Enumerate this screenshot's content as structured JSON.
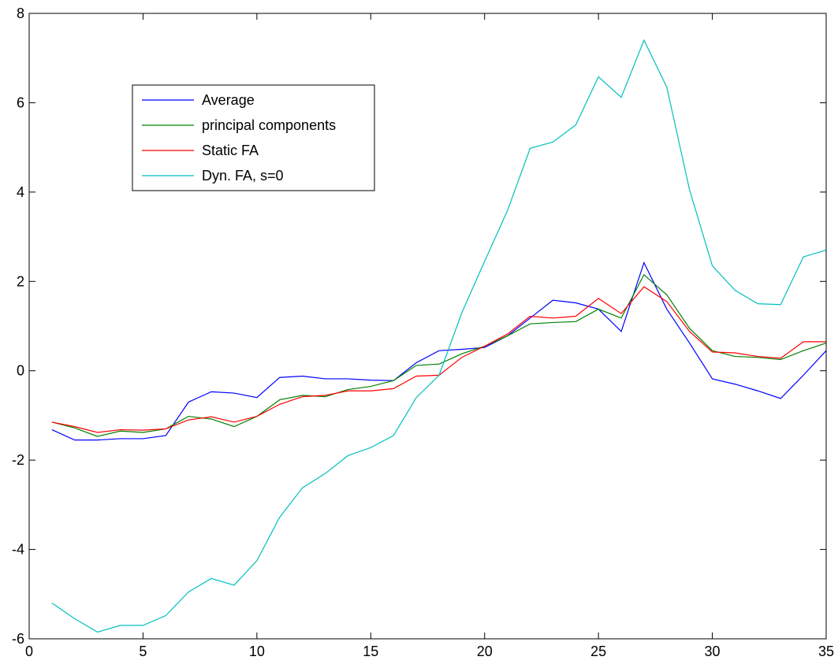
{
  "chart_data": {
    "type": "line",
    "title": "",
    "xlabel": "",
    "ylabel": "",
    "xlim": [
      0,
      35
    ],
    "ylim": [
      -6,
      8
    ],
    "xticks": [
      0,
      5,
      10,
      15,
      20,
      25,
      30,
      35
    ],
    "yticks": [
      -6,
      -4,
      -2,
      0,
      2,
      4,
      6,
      8
    ],
    "grid": false,
    "legend_position": "top-left",
    "x": [
      1,
      2,
      3,
      4,
      5,
      6,
      7,
      8,
      9,
      10,
      11,
      12,
      13,
      14,
      15,
      16,
      17,
      18,
      19,
      20,
      21,
      22,
      23,
      24,
      25,
      26,
      27,
      28,
      29,
      30,
      31,
      32,
      33,
      34,
      35
    ],
    "series": [
      {
        "name": "Average",
        "color": "#0000ff",
        "values": [
          -1.32,
          -1.55,
          -1.55,
          -1.52,
          -1.52,
          -1.45,
          -0.7,
          -0.47,
          -0.5,
          -0.6,
          -0.15,
          -0.12,
          -0.18,
          -0.18,
          -0.21,
          -0.22,
          0.18,
          0.45,
          0.48,
          0.52,
          0.78,
          1.18,
          1.58,
          1.52,
          1.38,
          0.88,
          2.42,
          1.38,
          0.62,
          -0.18,
          -0.3,
          -0.45,
          -0.62,
          -0.1,
          0.45
        ]
      },
      {
        "name": "principal components",
        "color": "#008000",
        "values": [
          -1.15,
          -1.28,
          -1.47,
          -1.35,
          -1.38,
          -1.3,
          -1.02,
          -1.08,
          -1.25,
          -1.02,
          -0.65,
          -0.55,
          -0.58,
          -0.42,
          -0.35,
          -0.22,
          0.12,
          0.15,
          0.38,
          0.55,
          0.78,
          1.05,
          1.08,
          1.1,
          1.38,
          1.18,
          2.15,
          1.7,
          0.95,
          0.45,
          0.32,
          0.3,
          0.25,
          0.45,
          0.62
        ]
      },
      {
        "name": "Static FA",
        "color": "#ff0000",
        "values": [
          -1.15,
          -1.25,
          -1.38,
          -1.32,
          -1.33,
          -1.3,
          -1.1,
          -1.03,
          -1.15,
          -1.02,
          -0.75,
          -0.58,
          -0.55,
          -0.45,
          -0.45,
          -0.4,
          -0.12,
          -0.1,
          0.3,
          0.55,
          0.82,
          1.22,
          1.18,
          1.22,
          1.62,
          1.28,
          1.88,
          1.55,
          0.88,
          0.42,
          0.4,
          0.32,
          0.28,
          0.65,
          0.65
        ]
      },
      {
        "name": "Dyn. FA, s=0",
        "color": "#00bfbf",
        "values": [
          -5.2,
          -5.55,
          -5.85,
          -5.7,
          -5.7,
          -5.48,
          -4.95,
          -4.65,
          -4.8,
          -4.25,
          -3.28,
          -2.62,
          -2.3,
          -1.9,
          -1.72,
          -1.45,
          -0.6,
          -0.1,
          1.3,
          2.45,
          3.58,
          4.98,
          5.12,
          5.5,
          6.58,
          6.12,
          7.4,
          6.35,
          4.05,
          2.35,
          1.8,
          1.5,
          1.48,
          2.55,
          2.7
        ]
      }
    ]
  }
}
